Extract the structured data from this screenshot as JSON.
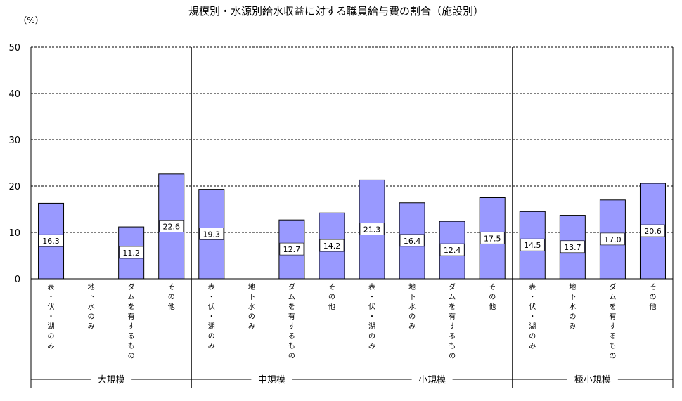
{
  "chart_data": {
    "type": "bar",
    "title": "規模別・水源別給水収益に対する職員給与費の割合（施設別）",
    "ylabel": "（%）",
    "ylim": [
      0,
      50
    ],
    "yticks": [
      0,
      10,
      20,
      30,
      40,
      50
    ],
    "grid": true,
    "bar_color": "#9999ff",
    "groups": [
      {
        "name": "大規模",
        "categories": [
          "表・伏・湖のみ",
          "地下水のみ",
          "ダムを有するもの",
          "その他"
        ],
        "values": [
          16.3,
          null,
          11.2,
          22.6
        ],
        "labels": [
          "16.3",
          "",
          "11.2",
          "22.6"
        ]
      },
      {
        "name": "中規模",
        "categories": [
          "表・伏・湖のみ",
          "地下水のみ",
          "ダムを有するもの",
          "その他"
        ],
        "values": [
          19.3,
          null,
          12.7,
          14.2
        ],
        "labels": [
          "19.3",
          "",
          "12.7",
          "14.2"
        ]
      },
      {
        "name": "小規模",
        "categories": [
          "表・伏・湖のみ",
          "地下水のみ",
          "ダムを有するもの",
          "その他"
        ],
        "values": [
          21.3,
          16.4,
          12.4,
          17.5
        ],
        "labels": [
          "21.3",
          "16.4",
          "12.4",
          "17.5"
        ]
      },
      {
        "name": "極小規模",
        "categories": [
          "表・伏・湖のみ",
          "地下水のみ",
          "ダムを有するもの",
          "その他"
        ],
        "values": [
          14.5,
          13.7,
          17.0,
          20.6
        ],
        "labels": [
          "14.5",
          "13.7",
          "17.0",
          "20.6"
        ]
      }
    ]
  }
}
